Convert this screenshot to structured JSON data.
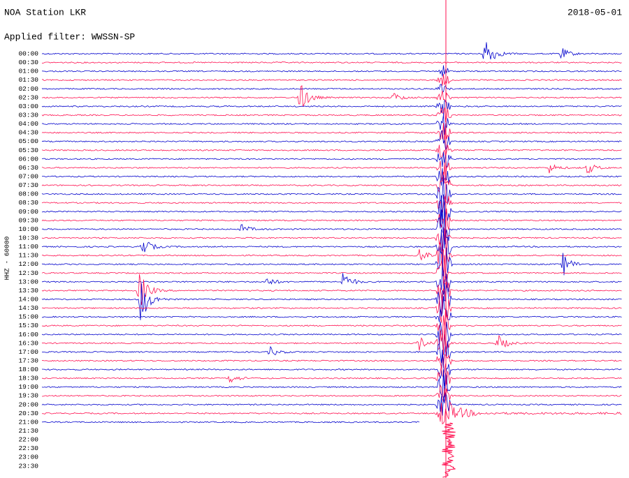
{
  "header": {
    "title": "NOA Station LKR",
    "date": "2018-05-01",
    "filter": "Applied filter: WWSSN-SP"
  },
  "channel": "HHZ - 60000",
  "trace_colors": [
    "#0000cc",
    "#ff1050"
  ],
  "rows": [
    "00:00",
    "00:30",
    "01:00",
    "01:30",
    "02:00",
    "02:30",
    "03:00",
    "03:30",
    "04:00",
    "04:30",
    "05:00",
    "05:30",
    "06:00",
    "06:30",
    "07:00",
    "07:30",
    "08:00",
    "08:30",
    "09:00",
    "09:30",
    "10:00",
    "10:30",
    "11:00",
    "11:30",
    "12:00",
    "12:30",
    "13:00",
    "13:30",
    "14:00",
    "14:30",
    "15:00",
    "15:30",
    "16:00",
    "16:30",
    "17:00",
    "17:30",
    "18:00",
    "18:30",
    "19:00",
    "19:30",
    "20:00",
    "20:30",
    "21:00",
    "21:30",
    "22:00",
    "22:30",
    "23:00",
    "23:30"
  ]
}
